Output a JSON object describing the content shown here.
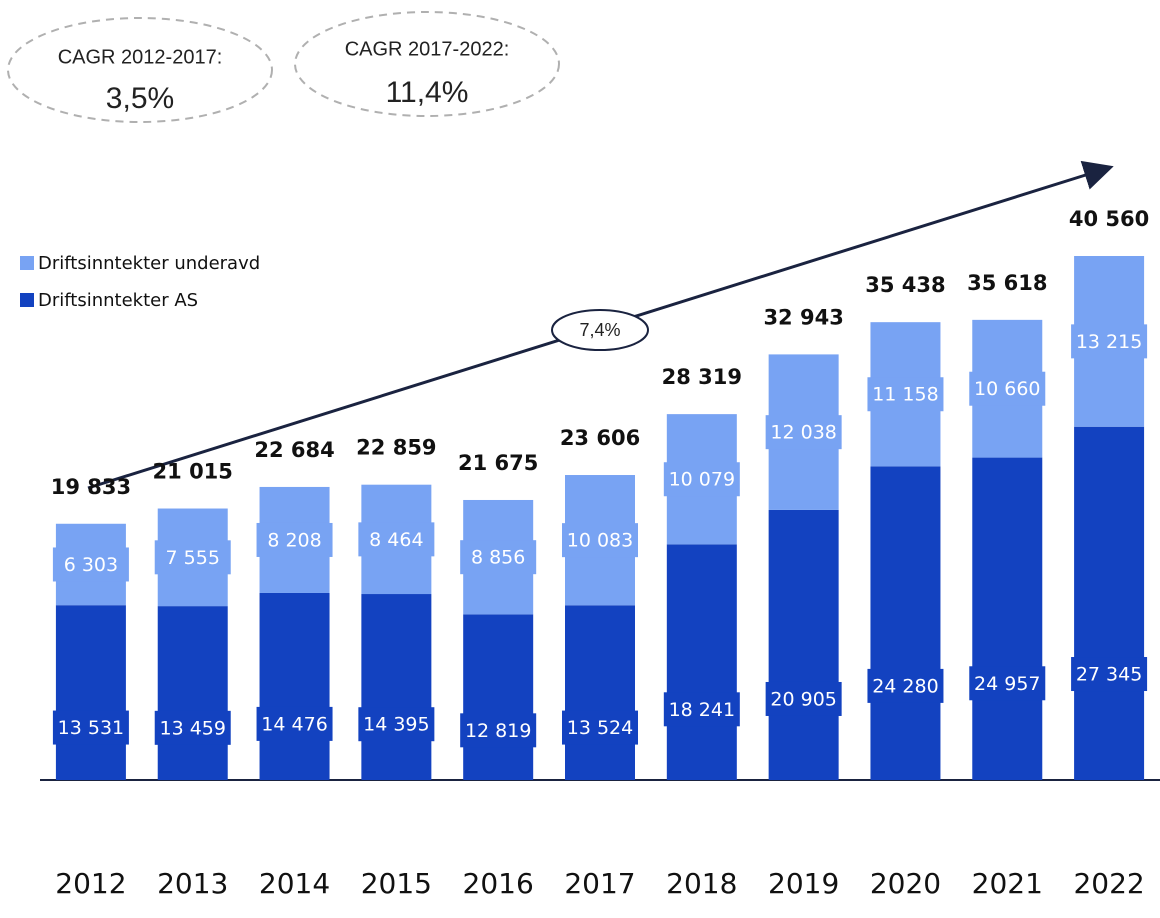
{
  "chart_data": {
    "type": "stacked-bar",
    "categories": [
      "2012",
      "2013",
      "2014",
      "2015",
      "2016",
      "2017",
      "2018",
      "2019",
      "2020",
      "2021",
      "2022"
    ],
    "series": [
      {
        "name": "Driftsinntekter AS",
        "color": "#1342c0",
        "values": [
          13531,
          13459,
          14476,
          14395,
          12819,
          13524,
          18241,
          20905,
          24280,
          24957,
          27345
        ],
        "value_labels": [
          "13 531",
          "13 459",
          "14 476",
          "14 395",
          "12 819",
          "13 524",
          "18 241",
          "20 905",
          "24 280",
          "24 957",
          "27 345"
        ]
      },
      {
        "name": "Driftsinntekter underavd",
        "color": "#78a3f3",
        "values": [
          6303,
          7555,
          8208,
          8464,
          8856,
          10083,
          10079,
          12038,
          11158,
          10660,
          13215
        ],
        "value_labels": [
          "6 303",
          "7 555",
          "8 208",
          "8 464",
          "8 856",
          "10 083",
          "10 079",
          "12 038",
          "11 158",
          "10 660",
          "13 215"
        ]
      }
    ],
    "totals": {
      "values": [
        19833,
        21015,
        22684,
        22859,
        21675,
        23606,
        28319,
        32943,
        35438,
        35618,
        40560
      ],
      "value_labels": [
        "19 833",
        "21 015",
        "22 684",
        "22 859",
        "21 675",
        "23 606",
        "28 319",
        "32 943",
        "35 438",
        "35 618",
        "40 560"
      ]
    },
    "annotations": [
      {
        "text": "CAGR 2012-2017:",
        "value_label": "3,5%"
      },
      {
        "text": "CAGR 2017-2022:",
        "value_label": "11,4%"
      },
      {
        "text": "7,4%"
      }
    ]
  }
}
